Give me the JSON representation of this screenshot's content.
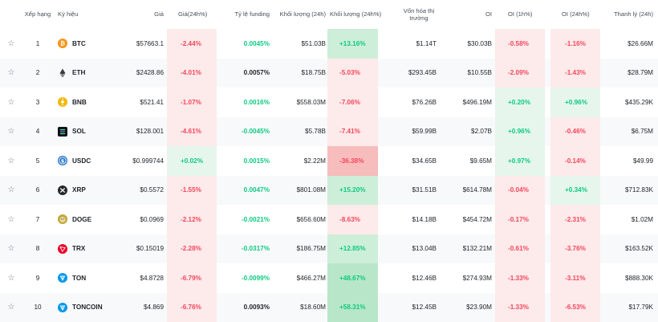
{
  "headers": {
    "rank": "Xếp hạng",
    "symbol": "Ký hiệu",
    "price": "Giá",
    "price_change_24h": "Giá(24h%)",
    "funding_rate": "Tỷ lệ funding",
    "volume_24h": "Khối lượng (24h)",
    "volume_change_24h": "Khối lượng (24h%)",
    "market_cap": "Vốn hóa thị trường",
    "oi": "OI",
    "oi_1h": "OI (1h%)",
    "oi_24h": "OI (24h%)",
    "liquidation": "Thanh lý (24h)"
  },
  "rows": [
    {
      "rank": "1",
      "symbol": "BTC",
      "icon": "bitcoin-icon",
      "price": "$57663.1",
      "price_change_24h": "-2.44%",
      "funding_rate": "0.0045%",
      "volume_24h": "$51.03B",
      "volume_change_24h": "+13.16%",
      "market_cap": "$1.14T",
      "oi": "$30.03B",
      "oi_1h": "-0.58%",
      "oi_24h": "-1.16%",
      "liquidation": "$26.66M"
    },
    {
      "rank": "2",
      "symbol": "ETH",
      "icon": "ethereum-icon",
      "price": "$2428.86",
      "price_change_24h": "-4.01%",
      "funding_rate": "0.0057%",
      "volume_24h": "$18.75B",
      "volume_change_24h": "-5.03%",
      "market_cap": "$293.45B",
      "oi": "$10.55B",
      "oi_1h": "-2.09%",
      "oi_24h": "-1.43%",
      "liquidation": "$28.79M"
    },
    {
      "rank": "3",
      "symbol": "BNB",
      "icon": "bnb-icon",
      "price": "$521.41",
      "price_change_24h": "-1.07%",
      "funding_rate": "0.0016%",
      "volume_24h": "$558.03M",
      "volume_change_24h": "-7.06%",
      "market_cap": "$76.26B",
      "oi": "$496.19M",
      "oi_1h": "+0.20%",
      "oi_24h": "+0.96%",
      "liquidation": "$435.29K"
    },
    {
      "rank": "4",
      "symbol": "SOL",
      "icon": "solana-icon",
      "price": "$128.001",
      "price_change_24h": "-4.61%",
      "funding_rate": "-0.0045%",
      "volume_24h": "$5.78B",
      "volume_change_24h": "-7.41%",
      "market_cap": "$59.99B",
      "oi": "$2.07B",
      "oi_1h": "+0.96%",
      "oi_24h": "-0.46%",
      "liquidation": "$6.75M"
    },
    {
      "rank": "5",
      "symbol": "USDC",
      "icon": "usdc-icon",
      "price": "$0.999744",
      "price_change_24h": "+0.02%",
      "funding_rate": "0.0015%",
      "volume_24h": "$2.22M",
      "volume_change_24h": "-36.38%",
      "market_cap": "$34.65B",
      "oi": "$9.65M",
      "oi_1h": "+0.97%",
      "oi_24h": "-0.14%",
      "liquidation": "$49.99"
    },
    {
      "rank": "6",
      "symbol": "XRP",
      "icon": "xrp-icon",
      "price": "$0.5572",
      "price_change_24h": "-1.55%",
      "funding_rate": "0.0047%",
      "volume_24h": "$801.08M",
      "volume_change_24h": "+15.20%",
      "market_cap": "$31.51B",
      "oi": "$614.78M",
      "oi_1h": "-0.04%",
      "oi_24h": "+0.34%",
      "liquidation": "$712.83K"
    },
    {
      "rank": "7",
      "symbol": "DOGE",
      "icon": "dogecoin-icon",
      "price": "$0.0969",
      "price_change_24h": "-2.12%",
      "funding_rate": "-0.0021%",
      "volume_24h": "$656.60M",
      "volume_change_24h": "-8.63%",
      "market_cap": "$14.18B",
      "oi": "$454.72M",
      "oi_1h": "-0.17%",
      "oi_24h": "-2.31%",
      "liquidation": "$1.02M"
    },
    {
      "rank": "8",
      "symbol": "TRX",
      "icon": "tron-icon",
      "price": "$0.15019",
      "price_change_24h": "-2.28%",
      "funding_rate": "-0.0317%",
      "volume_24h": "$186.75M",
      "volume_change_24h": "+12.85%",
      "market_cap": "$13.04B",
      "oi": "$132.21M",
      "oi_1h": "-0.61%",
      "oi_24h": "-3.76%",
      "liquidation": "$163.52K"
    },
    {
      "rank": "9",
      "symbol": "TON",
      "icon": "toncoin-icon",
      "price": "$4.8728",
      "price_change_24h": "-6.79%",
      "funding_rate": "-0.0099%",
      "volume_24h": "$466.27M",
      "volume_change_24h": "+48.67%",
      "market_cap": "$12.46B",
      "oi": "$274.93M",
      "oi_1h": "-1.33%",
      "oi_24h": "-3.11%",
      "liquidation": "$888.30K"
    },
    {
      "rank": "10",
      "symbol": "TONCOIN",
      "icon": "toncoin-icon",
      "price": "$4.869",
      "price_change_24h": "-6.76%",
      "funding_rate": "0.0093%",
      "volume_24h": "$18.60M",
      "volume_change_24h": "+58.31%",
      "market_cap": "$12.45B",
      "oi": "$23.90M",
      "oi_1h": "-1.33%",
      "oi_24h": "-6.53%",
      "liquidation": "$17.79K"
    }
  ],
  "colors": {
    "positive_text": "#0ecb81",
    "negative_text": "#f6465d",
    "positive_bg": "#e6f6ec",
    "negative_bg": "#fdeaea",
    "strong_positive_bg": "#b8e6c8",
    "strong_negative_bg": "#f7bcbc",
    "btc": "#f7931a",
    "eth": "#3c3c3d",
    "bnb": "#f0b90b",
    "sol": "#111111",
    "usdc": "#2775ca",
    "xrp": "#23292f",
    "doge": "#c2a633",
    "trx": "#eb0029",
    "ton": "#0098ea"
  }
}
